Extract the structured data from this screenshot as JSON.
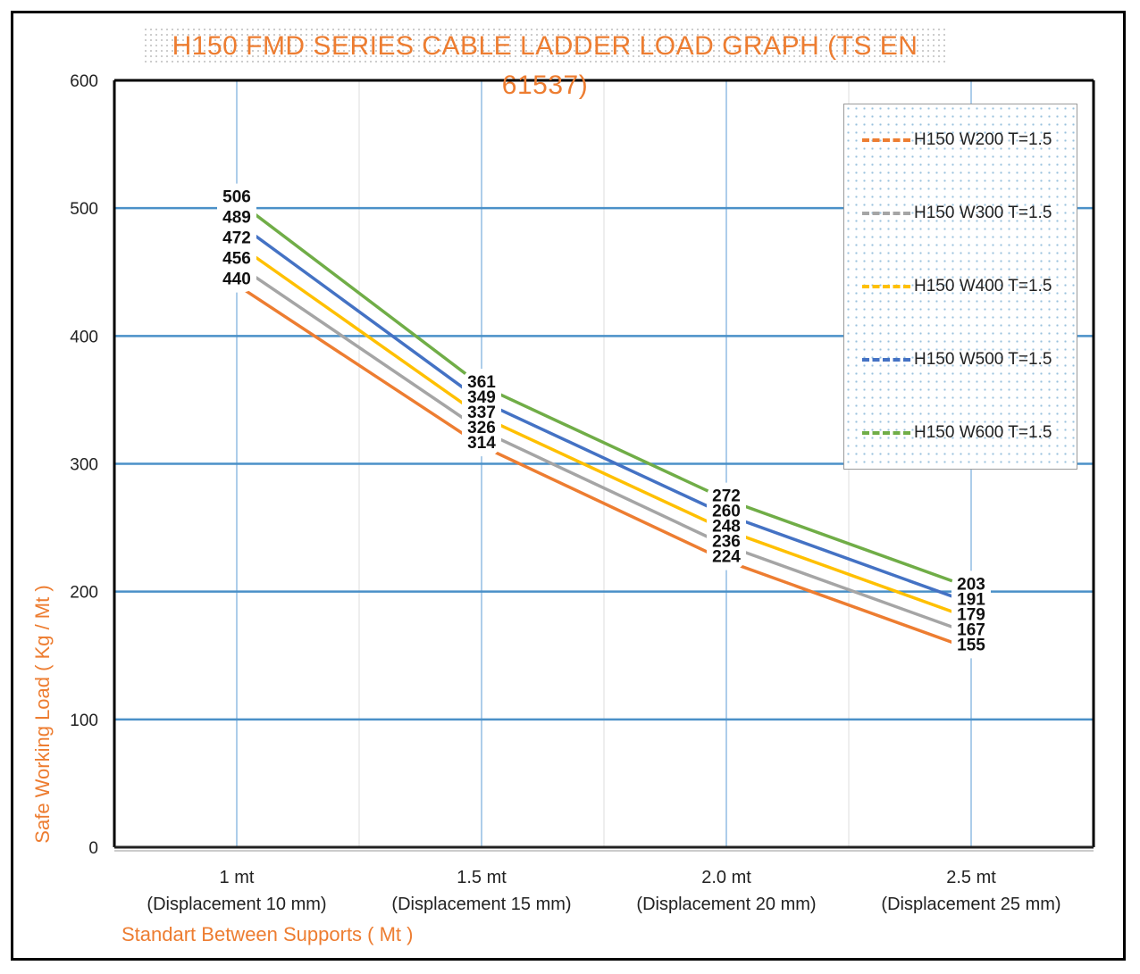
{
  "chart_data": {
    "type": "line",
    "title": "H150 FMD SERIES CABLE LADDER LOAD GRAPH (TS EN 61537)",
    "xlabel": "Standart Between Supports ( Mt )",
    "ylabel": "Safe Working Load ( Kg / Mt )",
    "ylim": [
      0,
      600
    ],
    "yticks": [
      "0",
      "100",
      "200",
      "300",
      "400",
      "500",
      "600"
    ],
    "categories": [
      {
        "label": "1 mt",
        "sub": "(Displacement 10 mm)"
      },
      {
        "label": "1.5 mt",
        "sub": "(Displacement 15 mm)"
      },
      {
        "label": "2.0 mt",
        "sub": "(Displacement 20 mm)"
      },
      {
        "label": "2.5 mt",
        "sub": "(Displacement 25 mm)"
      }
    ],
    "grid": true,
    "legend_position": "top-right",
    "series": [
      {
        "name": "H150 W200 T=1.5",
        "color": "#ed7d31",
        "values": [
          440,
          314,
          224,
          155
        ]
      },
      {
        "name": "H150 W300 T=1.5",
        "color": "#a5a5a5",
        "values": [
          456,
          326,
          236,
          167
        ]
      },
      {
        "name": "H150 W400 T=1.5",
        "color": "#ffc000",
        "values": [
          472,
          337,
          248,
          179
        ]
      },
      {
        "name": "H150 W500 T=1.5",
        "color": "#4472c4",
        "values": [
          489,
          349,
          260,
          191
        ]
      },
      {
        "name": "H150 W600 T=1.5",
        "color": "#70ad47",
        "values": [
          506,
          361,
          272,
          203
        ]
      }
    ]
  }
}
